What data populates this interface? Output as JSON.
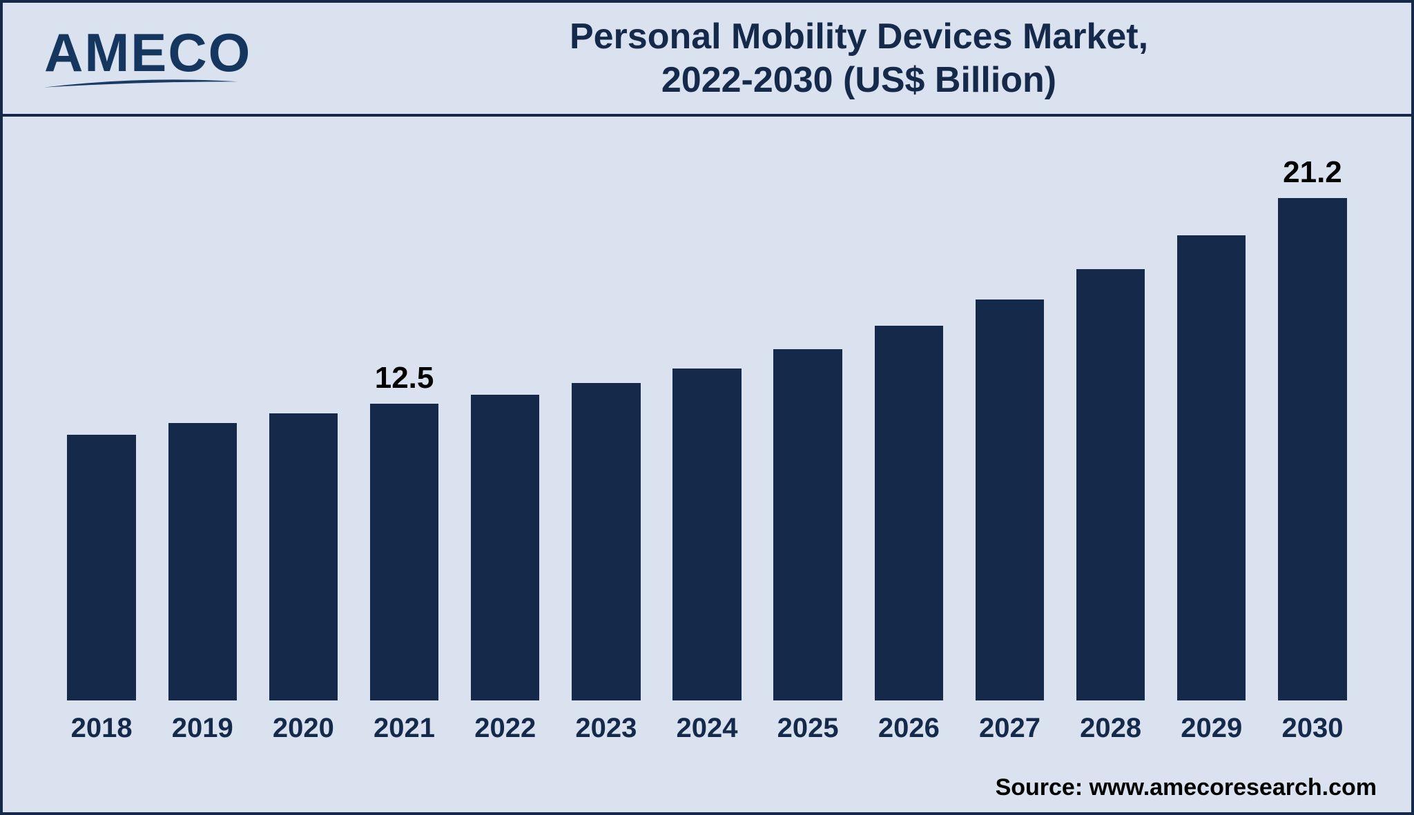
{
  "logo": {
    "text": "AMECO",
    "color": "#14365f",
    "swoosh_color": "#1b3a66"
  },
  "title": {
    "line1": "Personal Mobility Devices Market,",
    "line2": "2022-2030 (US$ Billion)",
    "color": "#15294b",
    "fontsize": 52,
    "fontweight": 700
  },
  "chart": {
    "type": "bar",
    "background_color": "#d9e2ee",
    "border_color": "#15294b",
    "bar_color": "#15294b",
    "bar_width": 0.68,
    "y_max": 22,
    "y_min": 0,
    "categories": [
      "2018",
      "2019",
      "2020",
      "2021",
      "2022",
      "2023",
      "2024",
      "2025",
      "2026",
      "2027",
      "2028",
      "2029",
      "2030"
    ],
    "values": [
      11.2,
      11.7,
      12.1,
      12.5,
      12.9,
      13.4,
      14.0,
      14.8,
      15.8,
      16.9,
      18.2,
      19.6,
      21.2
    ],
    "value_labels": {
      "2021": "12.5",
      "2030": "21.2"
    },
    "x_label_fontsize": 40,
    "x_label_fontweight": 700,
    "x_label_color": "#15294b",
    "value_label_fontsize": 44,
    "value_label_fontweight": 700,
    "value_label_color": "#000000"
  },
  "source": {
    "text": "Source: www.amecoresearch.com",
    "fontsize": 34,
    "fontweight": 700,
    "color": "#000000"
  }
}
